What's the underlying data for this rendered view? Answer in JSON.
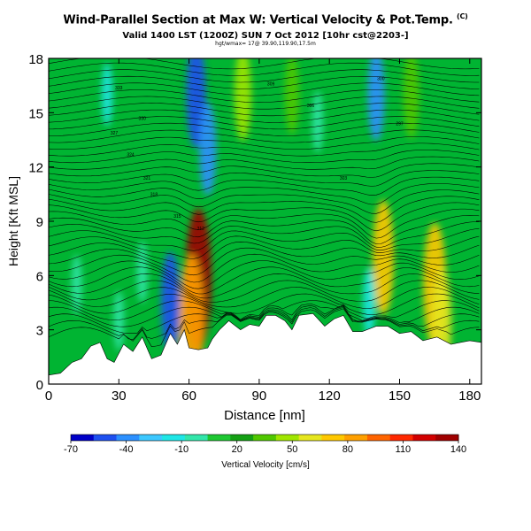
{
  "chart_data": {
    "type": "heatmap",
    "title": "Wind-Parallel Section at Max W: Vertical Velocity & Pot.Temp.",
    "title_mark": "(C)",
    "subtitle": "Valid 1400 LST (1200Z) SUN 7 Oct 2012 [10hr cst@2203-]",
    "subtitle2": "hgt/wmax= 17@ 39.90,119.90,17.5m",
    "xlabel": "Distance [nm]",
    "ylabel": "Height [Kft MSL]",
    "xlim": [
      0,
      185
    ],
    "ylim": [
      0,
      18
    ],
    "xticks": [
      "0",
      "30",
      "60",
      "90",
      "120",
      "150",
      "180"
    ],
    "yticks": [
      "0",
      "3",
      "6",
      "9",
      "12",
      "15",
      "18"
    ],
    "colorbar": {
      "label": "Vertical Velocity [cm/s]",
      "tick_labels": [
        "-70",
        "-40",
        "-10",
        "20",
        "50",
        "80",
        "110",
        "140"
      ],
      "colors": [
        "#0000c8",
        "#1e50f0",
        "#2c90ff",
        "#3cc8ff",
        "#1ee6e6",
        "#32e6aa",
        "#1ec832",
        "#14a014",
        "#50c800",
        "#a0e600",
        "#e6e61e",
        "#ffc800",
        "#ffa000",
        "#ff6400",
        "#ff2800",
        "#d20000",
        "#a00000"
      ]
    },
    "contour_field": "Potential temperature",
    "vertical_velocity_features": [
      {
        "x": 64,
        "z": 5.8,
        "w": 140,
        "sign": "up"
      },
      {
        "x": 61,
        "z": 3.5,
        "w": 90,
        "sign": "up"
      },
      {
        "x": 143,
        "z": 7,
        "w": 70,
        "sign": "up"
      },
      {
        "x": 165,
        "z": 5.5,
        "w": 80,
        "sign": "up"
      },
      {
        "x": 168,
        "z": 3.5,
        "w": 60,
        "sign": "up"
      },
      {
        "x": 83,
        "z": 16,
        "w": 45,
        "sign": "up"
      },
      {
        "x": 155,
        "z": 16,
        "w": 40,
        "sign": "up"
      },
      {
        "x": 104,
        "z": 16,
        "w": 30,
        "sign": "up"
      },
      {
        "x": 63,
        "z": 16,
        "w": -60,
        "sign": "down"
      },
      {
        "x": 68,
        "z": 13,
        "w": -45,
        "sign": "down"
      },
      {
        "x": 52,
        "z": 4.5,
        "w": -55,
        "sign": "down"
      },
      {
        "x": 140,
        "z": 16,
        "w": -45,
        "sign": "down"
      },
      {
        "x": 137,
        "z": 4.5,
        "w": -20,
        "sign": "down"
      },
      {
        "x": 25,
        "z": 16,
        "w": -12,
        "sign": "down"
      },
      {
        "x": 115,
        "z": 14.5,
        "w": -10,
        "sign": "down"
      },
      {
        "x": 12,
        "z": 5.5,
        "w": -8,
        "sign": "down"
      },
      {
        "x": 40,
        "z": 6.2,
        "w": -10,
        "sign": "down"
      },
      {
        "x": 30,
        "z": 3.5,
        "w": -8,
        "sign": "down"
      }
    ],
    "terrain_kft": [
      [
        0,
        0.5
      ],
      [
        5,
        0.6
      ],
      [
        10,
        1.2
      ],
      [
        14,
        1.4
      ],
      [
        18,
        2.1
      ],
      [
        22,
        2.3
      ],
      [
        25,
        1.4
      ],
      [
        28,
        1.2
      ],
      [
        32,
        2.2
      ],
      [
        36,
        1.8
      ],
      [
        40,
        2.6
      ],
      [
        44,
        1.4
      ],
      [
        48,
        1.6
      ],
      [
        52,
        2.8
      ],
      [
        55,
        2.2
      ],
      [
        58,
        3.0
      ],
      [
        60,
        2.0
      ],
      [
        64,
        1.9
      ],
      [
        68,
        2.0
      ],
      [
        70,
        2.5
      ],
      [
        73,
        3.0
      ],
      [
        77,
        3.5
      ],
      [
        82,
        3.0
      ],
      [
        86,
        3.3
      ],
      [
        90,
        3.2
      ],
      [
        93,
        3.8
      ],
      [
        97,
        3.8
      ],
      [
        101,
        3.5
      ],
      [
        104,
        3.0
      ],
      [
        107,
        3.8
      ],
      [
        113,
        3.9
      ],
      [
        118,
        3.2
      ],
      [
        122,
        3.6
      ],
      [
        126,
        3.8
      ],
      [
        130,
        2.9
      ],
      [
        134,
        2.9
      ],
      [
        140,
        3.2
      ],
      [
        145,
        3.2
      ],
      [
        150,
        2.8
      ],
      [
        155,
        2.9
      ],
      [
        160,
        2.4
      ],
      [
        166,
        2.6
      ],
      [
        172,
        2.2
      ],
      [
        180,
        2.4
      ],
      [
        185,
        2.3
      ]
    ],
    "contour_labels": [
      "333",
      "330",
      "327",
      "324",
      "321",
      "318",
      "315",
      "312",
      "309",
      "306",
      "303",
      "300",
      "297"
    ]
  },
  "colors": {
    "background": "#00b432",
    "contour": "#000000",
    "terrain": "#ffffff"
  }
}
